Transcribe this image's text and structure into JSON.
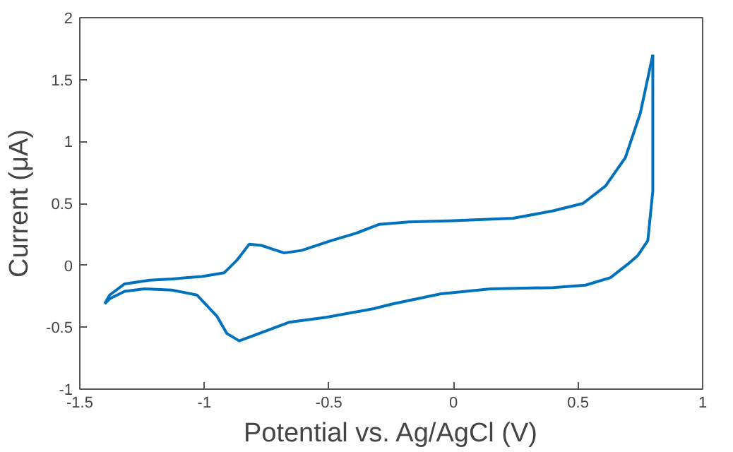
{
  "chart_data": {
    "type": "line",
    "xlabel": "Potential vs. Ag/AgCl (V)",
    "ylabel": "Current (μA)",
    "xlim": [
      -1.5,
      1
    ],
    "xticks": [
      -1.5,
      -1,
      -0.5,
      0,
      0.5,
      1
    ],
    "ylim": [
      -1,
      2
    ],
    "yticks": [
      -1,
      -0.5,
      0,
      0.5,
      1,
      1.5,
      2
    ],
    "grid": false,
    "marker": "none",
    "line_style": "solid",
    "series": [
      {
        "color": "#0072bd",
        "x": [
          -1.4,
          -1.38,
          -1.32,
          -1.22,
          -1.13,
          -1.01,
          -0.92,
          -0.87,
          -0.82,
          -0.77,
          -0.68,
          -0.61,
          -0.49,
          -0.39,
          -0.3,
          -0.24,
          -0.18,
          0.0,
          0.24,
          0.4,
          0.52,
          0.61,
          0.69,
          0.75,
          0.8
        ],
        "values": [
          -0.31,
          -0.24,
          -0.15,
          -0.12,
          -0.11,
          -0.09,
          -0.06,
          0.04,
          0.17,
          0.16,
          0.1,
          0.12,
          0.2,
          0.26,
          0.33,
          0.34,
          0.35,
          0.36,
          0.38,
          0.44,
          0.5,
          0.64,
          0.87,
          1.23,
          1.7
        ]
      },
      {
        "color": "#0072bd",
        "x": [
          0.8,
          0.8,
          0.78,
          0.74,
          0.7,
          0.63,
          0.53,
          0.4,
          0.15,
          -0.05,
          -0.24,
          -0.32,
          -0.51,
          -0.66,
          -0.78,
          -0.86,
          -0.91,
          -0.95,
          -1.03,
          -1.13,
          -1.24,
          -1.32,
          -1.38,
          -1.4
        ],
        "values": [
          1.7,
          0.6,
          0.2,
          0.08,
          0.01,
          -0.1,
          -0.16,
          -0.18,
          -0.19,
          -0.23,
          -0.31,
          -0.35,
          -0.42,
          -0.46,
          -0.55,
          -0.61,
          -0.55,
          -0.41,
          -0.24,
          -0.2,
          -0.19,
          -0.21,
          -0.27,
          -0.31
        ]
      }
    ]
  }
}
